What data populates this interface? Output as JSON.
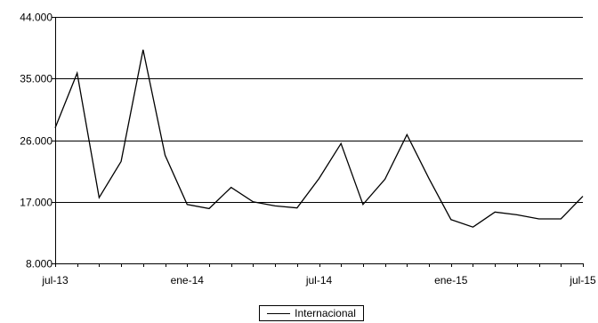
{
  "chart_data": {
    "type": "line",
    "title": "",
    "xlabel": "",
    "ylabel": "",
    "ylim": [
      8000,
      44000
    ],
    "y_ticks": [
      8000,
      17000,
      26000,
      35000,
      44000
    ],
    "y_tick_labels": [
      "8.000",
      "17.000",
      "26.000",
      "35.000",
      "44.000"
    ],
    "x_tick_labels": [
      "jul-13",
      "ene-14",
      "jul-14",
      "ene-15",
      "jul-15"
    ],
    "x_tick_months": [
      "2013-07",
      "2014-01",
      "2014-07",
      "2015-01",
      "2015-07"
    ],
    "x": [
      "2013-07",
      "2013-08",
      "2013-09",
      "2013-10",
      "2013-11",
      "2013-12",
      "2014-01",
      "2014-02",
      "2014-03",
      "2014-04",
      "2014-05",
      "2014-06",
      "2014-07",
      "2014-08",
      "2014-09",
      "2014-10",
      "2014-11",
      "2014-12",
      "2015-01",
      "2015-02",
      "2015-03",
      "2015-04",
      "2015-05",
      "2015-06",
      "2015-07"
    ],
    "grid": "horizontal",
    "legend_position": "bottom-center",
    "series": [
      {
        "name": "Internacional",
        "color": "#000000",
        "values": [
          27800,
          35800,
          17600,
          22900,
          39200,
          23800,
          16600,
          16000,
          19100,
          17000,
          16400,
          16100,
          20400,
          25500,
          16600,
          20300,
          26800,
          20400,
          14400,
          13300,
          15500,
          15100,
          14500,
          14500,
          17800
        ]
      }
    ]
  }
}
